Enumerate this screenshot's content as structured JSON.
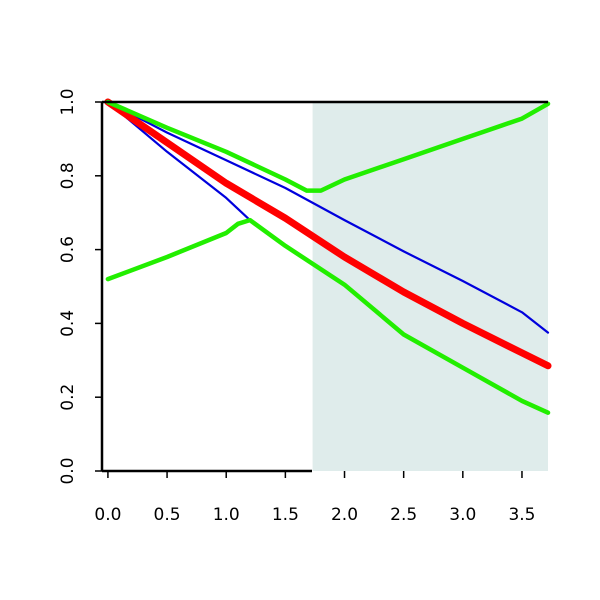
{
  "chart_data": {
    "type": "line",
    "title": "",
    "xlabel": "",
    "ylabel": "",
    "xlim": [
      -0.05,
      3.72
    ],
    "ylim": [
      0.0,
      1.0
    ],
    "x_ticks": [
      "0.0",
      "0.5",
      "1.0",
      "1.5",
      "2.0",
      "2.5",
      "3.0",
      "3.5"
    ],
    "y_ticks": [
      "0.0",
      "0.2",
      "0.4",
      "0.6",
      "0.8",
      "1.0"
    ],
    "grid": false,
    "legend": "none",
    "shaded_region": {
      "x_from": 1.73,
      "x_to": 3.72,
      "color": "#dfeceb"
    },
    "series": [
      {
        "color": "#0000dd",
        "style": "thin",
        "x": [
          0.0,
          0.5,
          1.0,
          1.5,
          2.0,
          2.5,
          3.0,
          3.5,
          3.72
        ],
        "y": [
          1.0,
          0.917,
          0.842,
          0.767,
          0.68,
          0.595,
          0.515,
          0.43,
          0.375
        ]
      },
      {
        "color": "#0000dd",
        "style": "thin",
        "x": [
          0.0,
          0.5,
          1.0,
          1.2
        ],
        "y": [
          1.0,
          0.865,
          0.74,
          0.68
        ]
      },
      {
        "color": "#ff0000",
        "style": "thick",
        "x": [
          0.0,
          0.5,
          1.0,
          1.5,
          2.0,
          2.5,
          3.0,
          3.5,
          3.72
        ],
        "y": [
          1.0,
          0.89,
          0.78,
          0.685,
          0.58,
          0.485,
          0.4,
          0.32,
          0.285
        ]
      },
      {
        "color": "#22ee00",
        "style": "medium",
        "x": [
          0.0,
          0.5,
          1.0,
          1.5,
          1.68,
          1.8,
          2.0,
          2.5,
          3.0,
          3.5,
          3.72
        ],
        "y": [
          1.0,
          0.93,
          0.865,
          0.79,
          0.76,
          0.76,
          0.79,
          0.845,
          0.9,
          0.955,
          0.995
        ]
      },
      {
        "color": "#22ee00",
        "style": "medium",
        "x": [
          0.0,
          0.5,
          1.0,
          1.1,
          1.2,
          1.5,
          2.0,
          2.5,
          3.0,
          3.5,
          3.72
        ],
        "y": [
          0.52,
          0.58,
          0.645,
          0.67,
          0.68,
          0.61,
          0.505,
          0.37,
          0.28,
          0.19,
          0.158
        ]
      }
    ]
  }
}
